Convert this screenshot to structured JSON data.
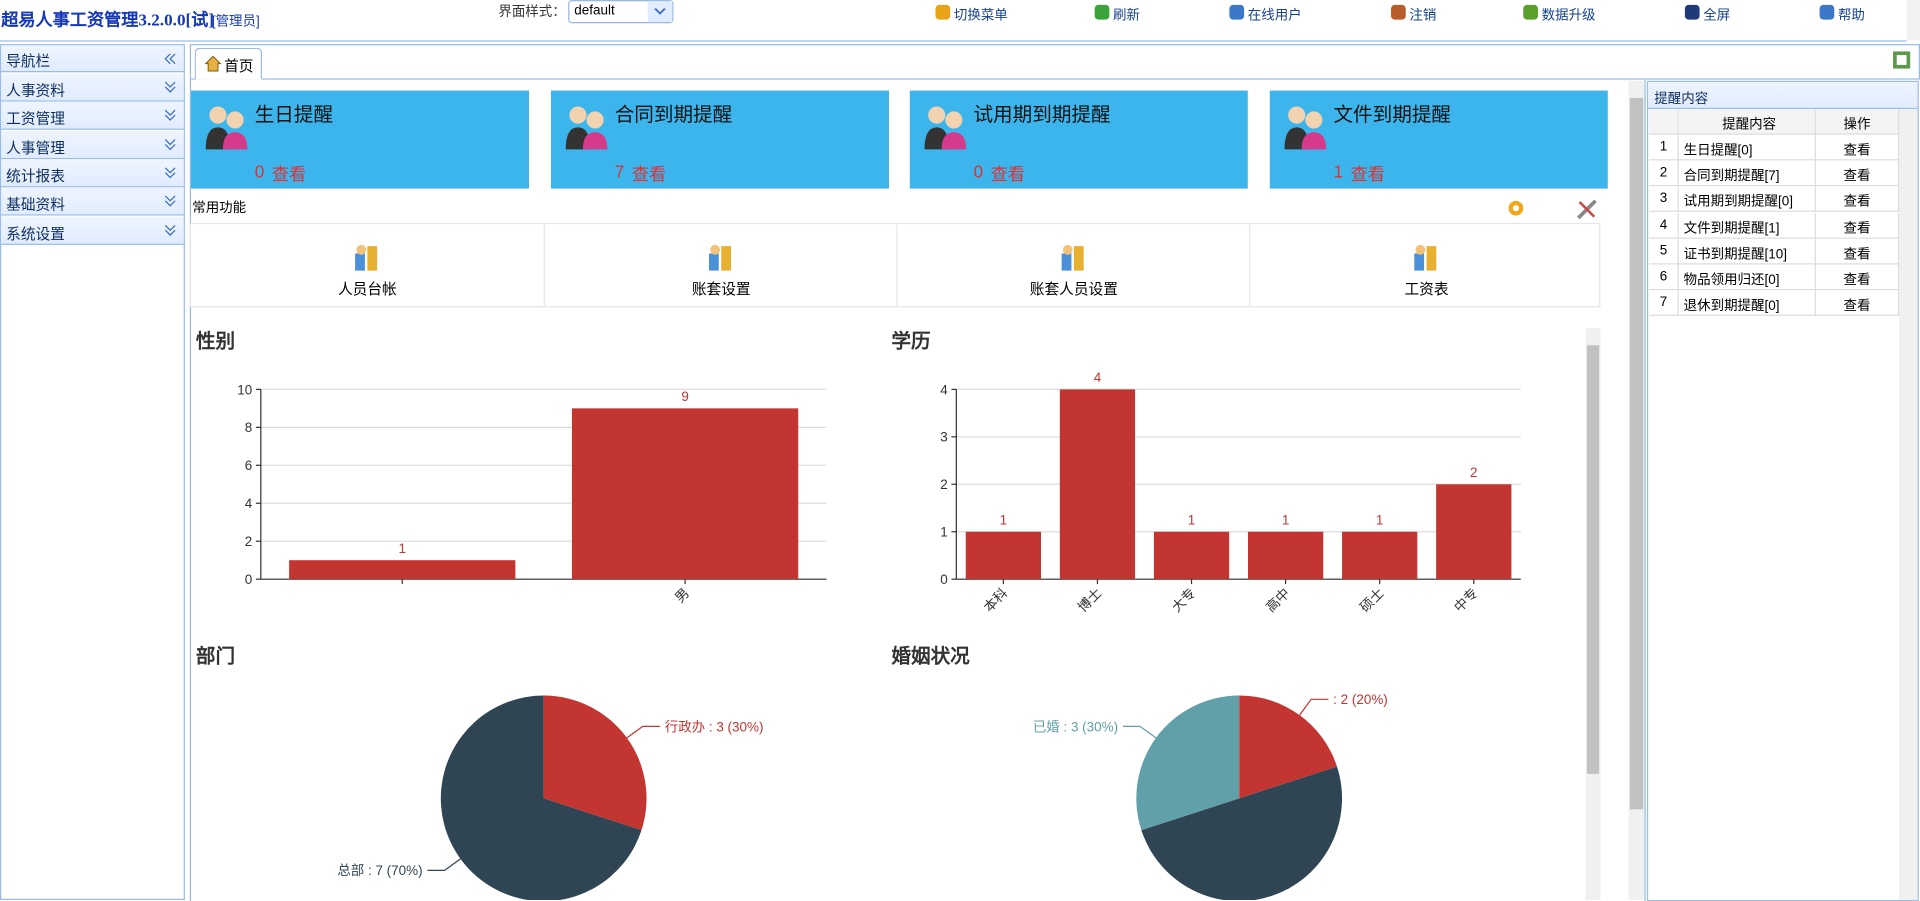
{
  "header": {
    "title": "超易人事工资管理3.2.0.0[试]",
    "role": "[管理员]",
    "theme_label": "界面样式：",
    "theme_value": "default"
  },
  "toolbar": [
    "切换菜单",
    "刷新",
    "在线用户",
    "注销",
    "数据升级",
    "全屏",
    "帮助"
  ],
  "sidebar": {
    "title": "导航栏",
    "items": [
      "人事资料",
      "工资管理",
      "人事管理",
      "统计报表",
      "基础资料",
      "系统设置"
    ]
  },
  "tabs": [
    "首页"
  ],
  "cards": [
    {
      "title": "生日提醒",
      "count": 0,
      "action": "查看"
    },
    {
      "title": "合同到期提醒",
      "count": 7,
      "action": "查看"
    },
    {
      "title": "试用期到期提醒",
      "count": 0,
      "action": "查看"
    },
    {
      "title": "文件到期提醒",
      "count": 1,
      "action": "查看"
    }
  ],
  "functions": {
    "title": "常用功能",
    "items": [
      "人员台帐",
      "账套设置",
      "账套人员设置",
      "工资表"
    ]
  },
  "chart_data": [
    {
      "type": "bar",
      "title": "性别",
      "categories": [
        null,
        "男"
      ],
      "values": [
        1,
        9
      ],
      "color": "#c23531",
      "ylim": [
        0,
        10
      ],
      "yticks": [
        0,
        2,
        4,
        6,
        8,
        10
      ],
      "grid": true
    },
    {
      "type": "bar",
      "title": "学历",
      "categories": [
        "本科",
        "博士",
        "大专",
        "高中",
        "硕士",
        "中专"
      ],
      "values": [
        1,
        4,
        1,
        1,
        1,
        2
      ],
      "color": "#c23531",
      "ylim": [
        0,
        4
      ],
      "yticks": [
        0,
        1,
        2,
        3,
        4
      ],
      "grid": true
    },
    {
      "type": "pie",
      "title": "部门",
      "values": [
        3,
        7
      ],
      "colors": [
        "#c23531",
        "#2f4554"
      ],
      "value_labels": [
        "行政办 : 3 (30%)",
        "总部 : 7 (70%)"
      ]
    },
    {
      "type": "pie",
      "title": "婚姻状况",
      "values": [
        2,
        5,
        3
      ],
      "colors": [
        "#c23531",
        "#2f4554",
        "#61a0a8"
      ],
      "value_labels": [
        ": 2 (20%)",
        null,
        "已婚 : 3 (30%)"
      ]
    }
  ],
  "reminder_panel": {
    "title": "提醒内容",
    "columns": [
      "提醒内容",
      "操作"
    ],
    "rows": [
      [
        1,
        "生日提醒[0]",
        "查看"
      ],
      [
        2,
        "合同到期提醒[7]",
        "查看"
      ],
      [
        3,
        "试用期到期提醒[0]",
        "查看"
      ],
      [
        4,
        "文件到期提醒[1]",
        "查看"
      ],
      [
        5,
        "证书到期提醒[10]",
        "查看"
      ],
      [
        6,
        "物品领用归还[0]",
        "查看"
      ],
      [
        7,
        "退休到期提醒[0]",
        "查看"
      ]
    ]
  }
}
